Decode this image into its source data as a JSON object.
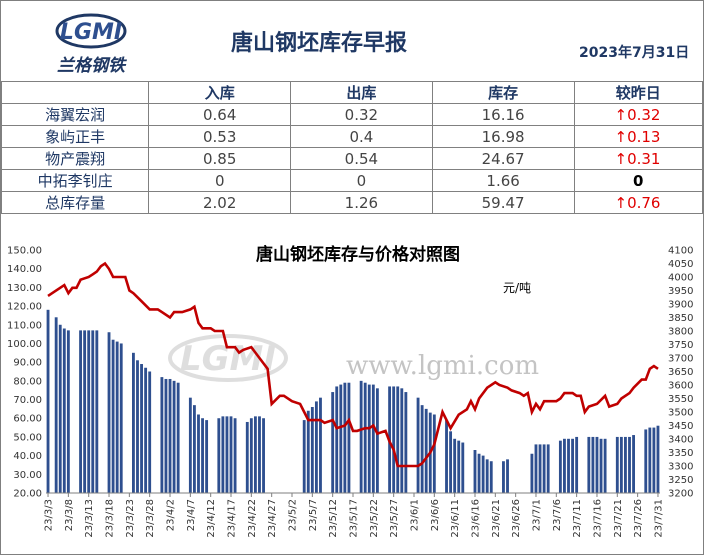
{
  "header": {
    "title": "唐山钢坯库存早报",
    "date": "2023年7月31日",
    "logo_text": "LGMI",
    "logo_cn": "兰格钢铁"
  },
  "table": {
    "columns": [
      "",
      "入库",
      "出库",
      "库存",
      "较昨日"
    ],
    "rows": [
      {
        "name": "海翼宏润",
        "in": "0.64",
        "out": "0.32",
        "stock": "16.16",
        "change": "↑0.32",
        "dir": "up"
      },
      {
        "name": "象屿正丰",
        "in": "0.53",
        "out": "0.4",
        "stock": "16.98",
        "change": "↑0.13",
        "dir": "up"
      },
      {
        "name": "物产震翔",
        "in": "0.85",
        "out": "0.54",
        "stock": "24.67",
        "change": "↑0.31",
        "dir": "up"
      },
      {
        "name": "中拓李钊庄",
        "in": "0",
        "out": "0",
        "stock": "1.66",
        "change": "0",
        "dir": "flat"
      },
      {
        "name": "总库存量",
        "in": "2.02",
        "out": "1.26",
        "stock": "59.47",
        "change": "↑0.76",
        "dir": "up"
      }
    ]
  },
  "watermark": "www.lgmi.com",
  "chart_data": {
    "type": "bar",
    "title": "唐山钢坯库存与价格对照图",
    "unit_label": "元/吨",
    "xlabel": "",
    "ylabel": "",
    "ylim": [
      20,
      150
    ],
    "y2lim": [
      3200,
      4100
    ],
    "yticks": [
      "150.00",
      "140.00",
      "130.00",
      "120.00",
      "110.00",
      "100.00",
      "90.00",
      "80.00",
      "70.00",
      "60.00",
      "50.00",
      "40.00",
      "30.00",
      "20.00"
    ],
    "y2ticks": [
      "4100",
      "4050",
      "4000",
      "3950",
      "3900",
      "3850",
      "3800",
      "3750",
      "3700",
      "3650",
      "3600",
      "3550",
      "3500",
      "3450",
      "3400",
      "3350",
      "3300",
      "3250",
      "3200"
    ],
    "xticks": [
      "23/3/3",
      "23/3/8",
      "23/3/13",
      "23/3/18",
      "23/3/23",
      "23/3/28",
      "23/4/2",
      "23/4/7",
      "23/4/12",
      "23/4/17",
      "23/4/22",
      "23/4/27",
      "23/5/2",
      "23/5/7",
      "23/5/12",
      "23/5/17",
      "23/5/22",
      "23/5/27",
      "23/6/1",
      "23/6/6",
      "23/6/11",
      "23/6/16",
      "23/6/21",
      "23/6/26",
      "23/7/1",
      "23/7/6",
      "23/7/11",
      "23/7/16",
      "23/7/21",
      "23/7/26",
      "23/7/31"
    ],
    "days": 151,
    "colors": {
      "bar": "#2e4f8f",
      "line": "#c00000"
    },
    "bars": [
      [
        0,
        118
      ],
      [
        2,
        114
      ],
      [
        3,
        110
      ],
      [
        4,
        108
      ],
      [
        5,
        107
      ],
      [
        8,
        107
      ],
      [
        9,
        107
      ],
      [
        10,
        107
      ],
      [
        11,
        107
      ],
      [
        12,
        107
      ],
      [
        15,
        106
      ],
      [
        16,
        102
      ],
      [
        17,
        101
      ],
      [
        18,
        100
      ],
      [
        21,
        95
      ],
      [
        22,
        91
      ],
      [
        23,
        89
      ],
      [
        24,
        87
      ],
      [
        25,
        85
      ],
      [
        28,
        82
      ],
      [
        29,
        81
      ],
      [
        30,
        81
      ],
      [
        31,
        80
      ],
      [
        32,
        79
      ],
      [
        35,
        71
      ],
      [
        36,
        67
      ],
      [
        37,
        62
      ],
      [
        38,
        60
      ],
      [
        39,
        59
      ],
      [
        42,
        60
      ],
      [
        43,
        61
      ],
      [
        44,
        61
      ],
      [
        45,
        61
      ],
      [
        46,
        60
      ],
      [
        49,
        58
      ],
      [
        50,
        60
      ],
      [
        51,
        61
      ],
      [
        52,
        61
      ],
      [
        53,
        60
      ],
      [
        63,
        59
      ],
      [
        64,
        64
      ],
      [
        65,
        66
      ],
      [
        66,
        69
      ],
      [
        67,
        71
      ],
      [
        70,
        74
      ],
      [
        71,
        77
      ],
      [
        72,
        78
      ],
      [
        73,
        79
      ],
      [
        74,
        79
      ],
      [
        77,
        80
      ],
      [
        78,
        79
      ],
      [
        79,
        78
      ],
      [
        80,
        78
      ],
      [
        81,
        76
      ],
      [
        84,
        77
      ],
      [
        85,
        77
      ],
      [
        86,
        77
      ],
      [
        87,
        76
      ],
      [
        88,
        74
      ],
      [
        91,
        71
      ],
      [
        92,
        67
      ],
      [
        93,
        65
      ],
      [
        94,
        63
      ],
      [
        95,
        62
      ],
      [
        98,
        59
      ],
      [
        99,
        53
      ],
      [
        100,
        49
      ],
      [
        101,
        48
      ],
      [
        102,
        47
      ],
      [
        105,
        43
      ],
      [
        106,
        41
      ],
      [
        107,
        40
      ],
      [
        108,
        38
      ],
      [
        109,
        37
      ],
      [
        112,
        37
      ],
      [
        113,
        38
      ],
      [
        119,
        41
      ],
      [
        120,
        46
      ],
      [
        121,
        46
      ],
      [
        122,
        46
      ],
      [
        123,
        46
      ],
      [
        126,
        48
      ],
      [
        127,
        49
      ],
      [
        128,
        49
      ],
      [
        129,
        49
      ],
      [
        130,
        50
      ],
      [
        133,
        50
      ],
      [
        134,
        50
      ],
      [
        135,
        50
      ],
      [
        136,
        49
      ],
      [
        137,
        49
      ],
      [
        140,
        50
      ],
      [
        141,
        50
      ],
      [
        142,
        50
      ],
      [
        143,
        50
      ],
      [
        144,
        51
      ],
      [
        147,
        54
      ],
      [
        148,
        55
      ],
      [
        149,
        55
      ],
      [
        150,
        56
      ]
    ],
    "price": [
      [
        0,
        3930
      ],
      [
        1,
        3940
      ],
      [
        3,
        3960
      ],
      [
        4,
        3970
      ],
      [
        5,
        3940
      ],
      [
        6,
        3960
      ],
      [
        7,
        3960
      ],
      [
        8,
        3990
      ],
      [
        10,
        4000
      ],
      [
        11,
        4010
      ],
      [
        12,
        4020
      ],
      [
        13,
        4040
      ],
      [
        14,
        4050
      ],
      [
        15,
        4030
      ],
      [
        16,
        4000
      ],
      [
        18,
        4000
      ],
      [
        19,
        4000
      ],
      [
        20,
        3950
      ],
      [
        21,
        3940
      ],
      [
        23,
        3910
      ],
      [
        25,
        3880
      ],
      [
        27,
        3880
      ],
      [
        28,
        3870
      ],
      [
        30,
        3850
      ],
      [
        31,
        3870
      ],
      [
        33,
        3870
      ],
      [
        35,
        3880
      ],
      [
        36,
        3890
      ],
      [
        37,
        3830
      ],
      [
        38,
        3810
      ],
      [
        40,
        3810
      ],
      [
        41,
        3800
      ],
      [
        43,
        3800
      ],
      [
        44,
        3740
      ],
      [
        46,
        3740
      ],
      [
        47,
        3720
      ],
      [
        48,
        3730
      ],
      [
        50,
        3740
      ],
      [
        51,
        3720
      ],
      [
        53,
        3680
      ],
      [
        54,
        3660
      ],
      [
        55,
        3530
      ],
      [
        57,
        3560
      ],
      [
        58,
        3560
      ],
      [
        60,
        3540
      ],
      [
        62,
        3530
      ],
      [
        63,
        3500
      ],
      [
        64,
        3470
      ],
      [
        67,
        3470
      ],
      [
        68,
        3460
      ],
      [
        70,
        3470
      ],
      [
        71,
        3440
      ],
      [
        73,
        3450
      ],
      [
        74,
        3470
      ],
      [
        75,
        3430
      ],
      [
        76,
        3430
      ],
      [
        78,
        3440
      ],
      [
        79,
        3440
      ],
      [
        80,
        3450
      ],
      [
        81,
        3420
      ],
      [
        83,
        3430
      ],
      [
        84,
        3390
      ],
      [
        85,
        3360
      ],
      [
        86,
        3300
      ],
      [
        91,
        3300
      ],
      [
        92,
        3310
      ],
      [
        93,
        3330
      ],
      [
        94,
        3350
      ],
      [
        95,
        3380
      ],
      [
        96,
        3440
      ],
      [
        97,
        3500
      ],
      [
        99,
        3440
      ],
      [
        101,
        3490
      ],
      [
        103,
        3510
      ],
      [
        104,
        3540
      ],
      [
        105,
        3510
      ],
      [
        106,
        3550
      ],
      [
        108,
        3590
      ],
      [
        110,
        3610
      ],
      [
        111,
        3600
      ],
      [
        113,
        3590
      ],
      [
        114,
        3580
      ],
      [
        116,
        3570
      ],
      [
        117,
        3560
      ],
      [
        118,
        3570
      ],
      [
        119,
        3500
      ],
      [
        120,
        3530
      ],
      [
        121,
        3510
      ],
      [
        122,
        3540
      ],
      [
        125,
        3540
      ],
      [
        126,
        3550
      ],
      [
        127,
        3570
      ],
      [
        129,
        3570
      ],
      [
        130,
        3560
      ],
      [
        131,
        3560
      ],
      [
        132,
        3500
      ],
      [
        133,
        3520
      ],
      [
        135,
        3530
      ],
      [
        137,
        3560
      ],
      [
        138,
        3520
      ],
      [
        140,
        3530
      ],
      [
        141,
        3550
      ],
      [
        143,
        3570
      ],
      [
        144,
        3590
      ],
      [
        146,
        3620
      ],
      [
        147,
        3620
      ],
      [
        148,
        3660
      ],
      [
        149,
        3670
      ],
      [
        150,
        3660
      ]
    ]
  }
}
